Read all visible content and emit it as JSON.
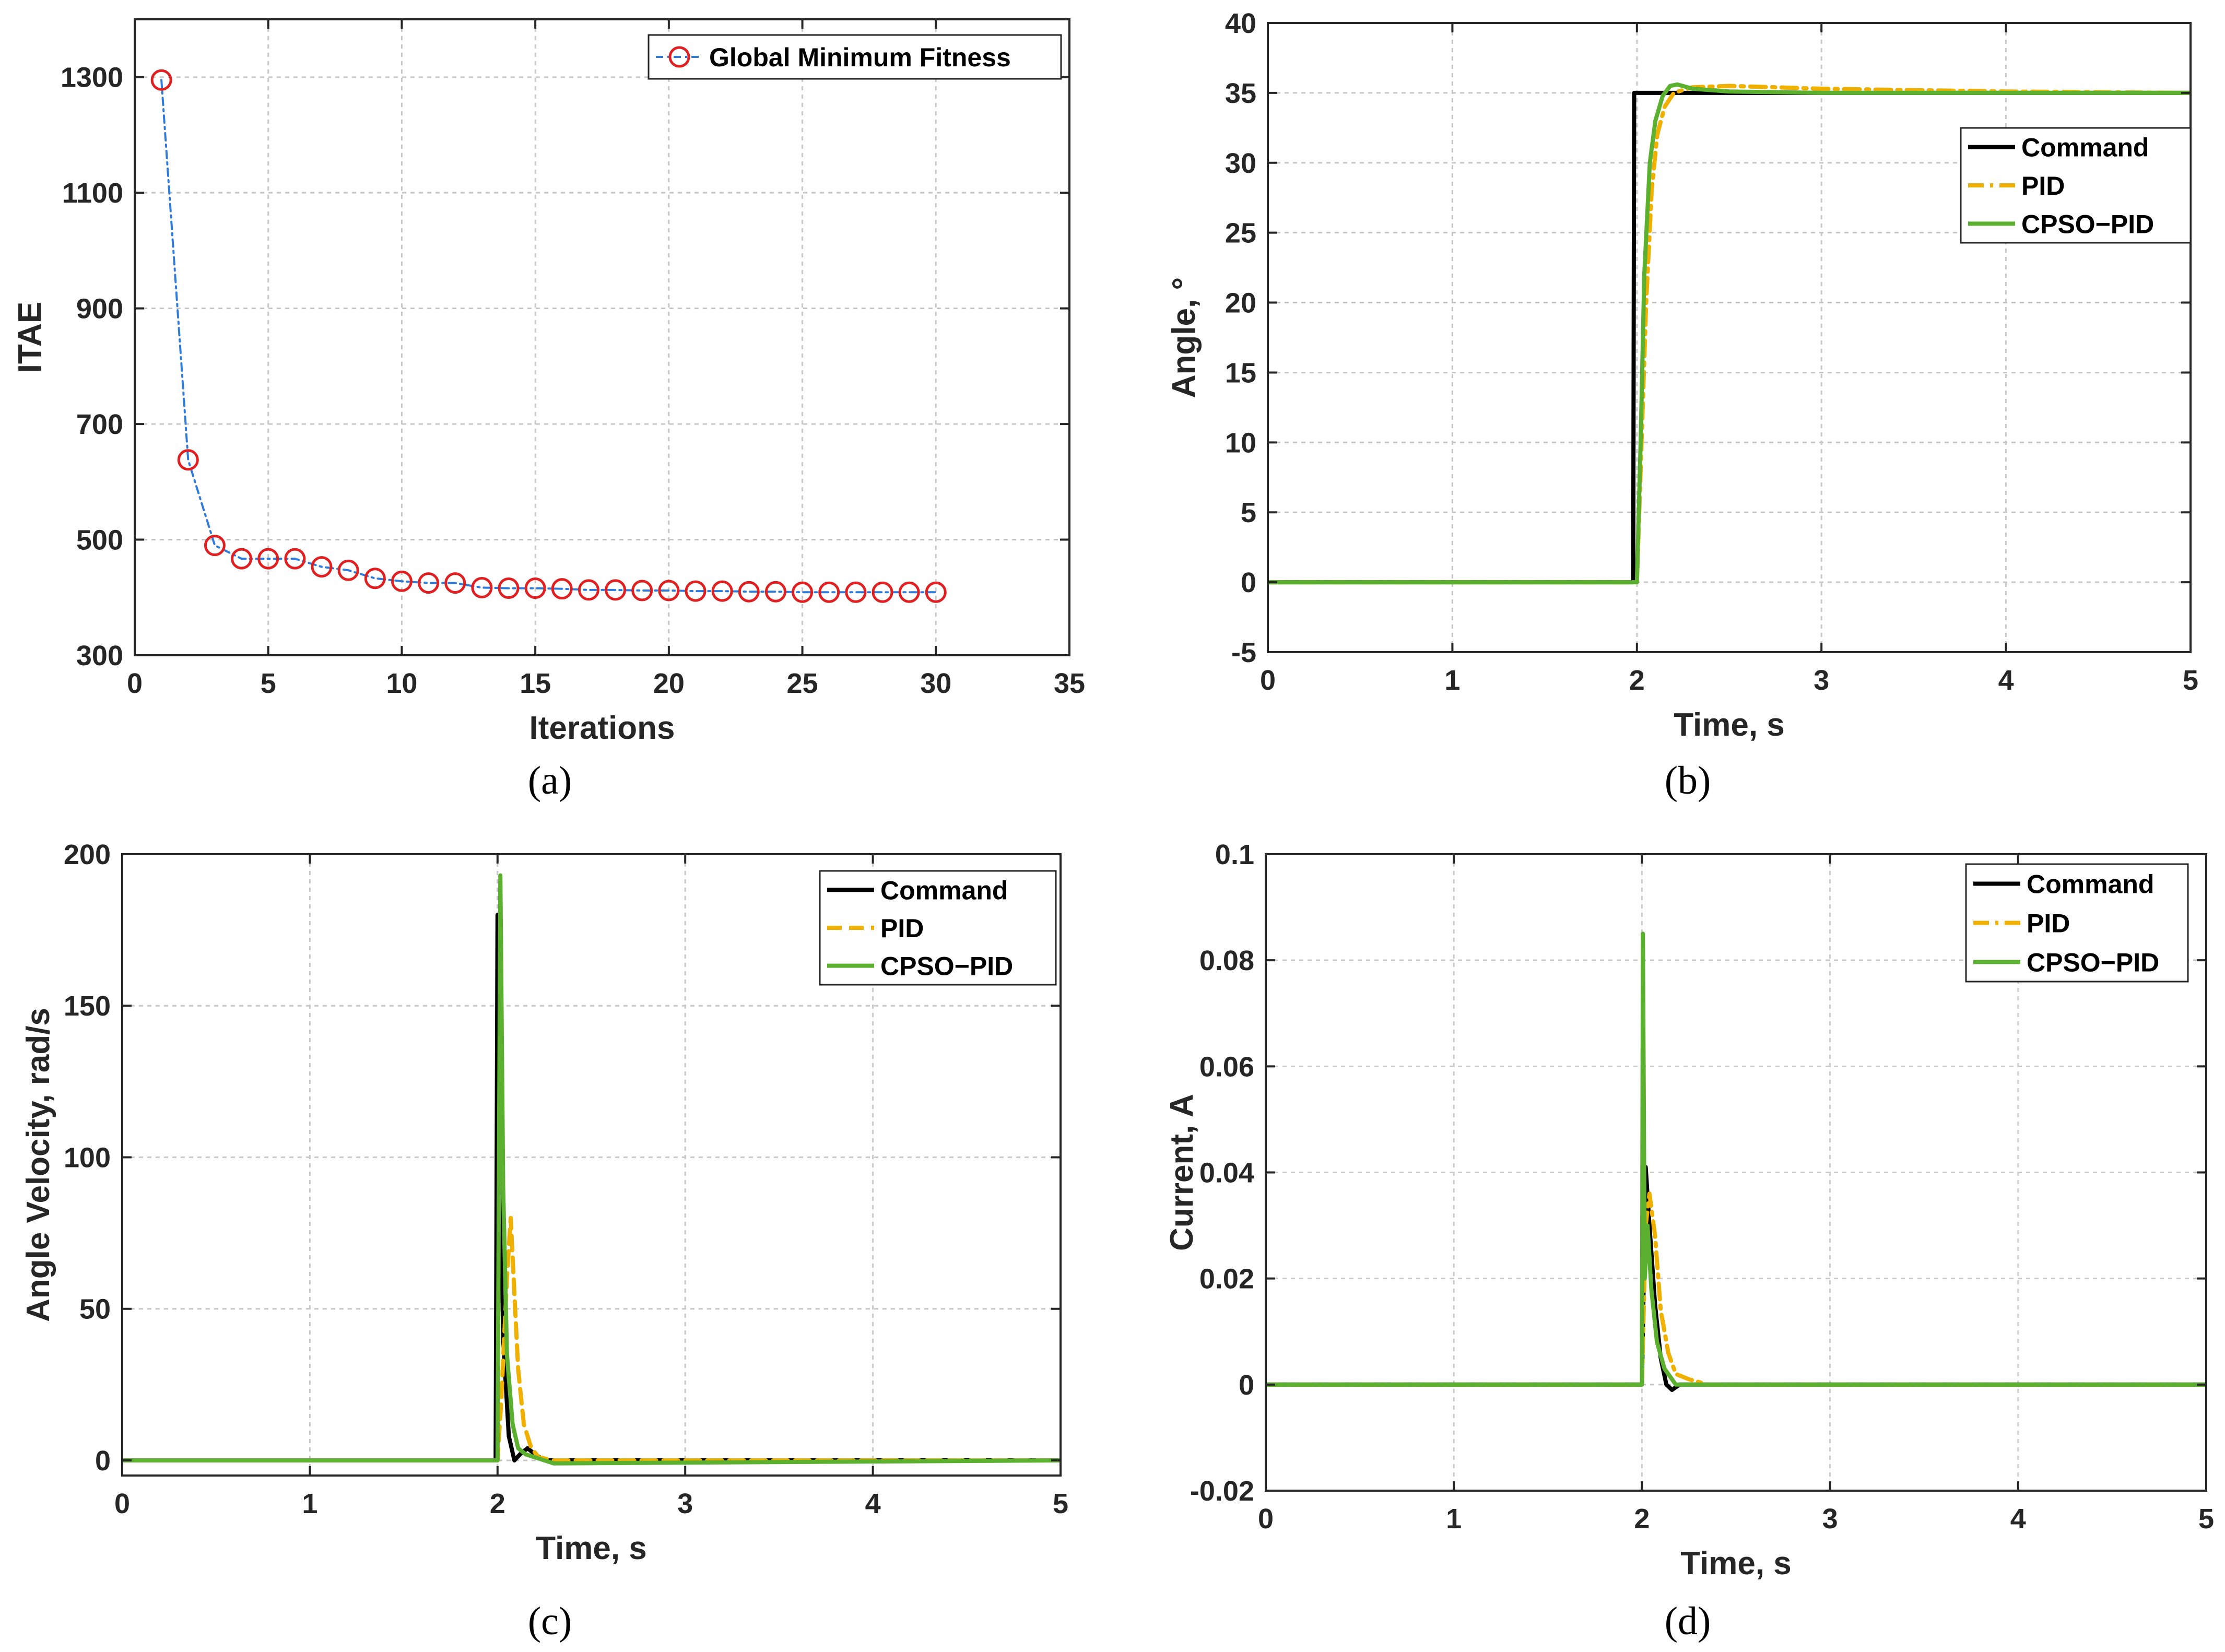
{
  "panel_labels": [
    "(a)",
    "(b)",
    "(c)",
    "(d)"
  ],
  "colors": {
    "fitness_line": "#2f7bd9",
    "fitness_marker": "#e02020",
    "command": "#000000",
    "pid": "#f0b000",
    "cpso_pid": "#5cb030",
    "grid": "#c8c8c8",
    "axis": "#262626"
  },
  "chart_data": [
    {
      "id": "a",
      "type": "line",
      "xlabel": "Iterations",
      "ylabel": "ITAE",
      "xlim": [
        0,
        35
      ],
      "ylim": [
        300,
        1400
      ],
      "xticks": [
        0,
        5,
        10,
        15,
        20,
        25,
        30,
        35
      ],
      "yticks": [
        300,
        500,
        700,
        900,
        1100,
        1300
      ],
      "grid": true,
      "legend_position": "top-right",
      "series": [
        {
          "name": "Global Minimum Fitness",
          "style": "dash-dot-circle",
          "x": [
            1,
            2,
            3,
            4,
            5,
            6,
            7,
            8,
            9,
            10,
            11,
            12,
            13,
            14,
            15,
            16,
            17,
            18,
            19,
            20,
            21,
            22,
            23,
            24,
            25,
            26,
            27,
            28,
            29,
            30
          ],
          "y": [
            1295,
            638,
            490,
            467,
            467,
            467,
            453,
            447,
            433,
            428,
            425,
            425,
            417,
            416,
            416,
            415,
            413,
            413,
            412,
            412,
            411,
            411,
            410,
            410,
            409,
            409,
            409,
            409,
            409,
            409
          ]
        }
      ]
    },
    {
      "id": "b",
      "type": "line",
      "xlabel": "Time, s",
      "ylabel": "Angle, °",
      "xlim": [
        0,
        5
      ],
      "ylim": [
        -5,
        40
      ],
      "xticks": [
        0,
        1,
        2,
        3,
        4,
        5
      ],
      "yticks": [
        -5,
        0,
        5,
        10,
        15,
        20,
        25,
        30,
        35,
        40
      ],
      "grid": true,
      "legend_position": "upper-right",
      "series": [
        {
          "name": "Command",
          "style": "solid",
          "x": [
            0,
            1.98,
            1.985,
            5
          ],
          "y": [
            0,
            0,
            35,
            35
          ]
        },
        {
          "name": "PID",
          "style": "dashdot",
          "x": [
            0,
            2.0,
            2.02,
            2.05,
            2.08,
            2.11,
            2.15,
            2.2,
            2.3,
            2.5,
            3.0,
            4.0,
            5.0
          ],
          "y": [
            0,
            0,
            8,
            20,
            28,
            32,
            34,
            35,
            35.4,
            35.5,
            35.3,
            35.1,
            35.0
          ]
        },
        {
          "name": "CPSO-PID",
          "style": "solid",
          "x": [
            0,
            2.0,
            2.02,
            2.04,
            2.07,
            2.1,
            2.14,
            2.18,
            2.22,
            2.3,
            2.5,
            3.0,
            4.0,
            5.0
          ],
          "y": [
            0,
            0,
            10,
            22,
            30,
            33,
            34.8,
            35.5,
            35.6,
            35.3,
            35.1,
            35.0,
            35.0,
            35.0
          ]
        }
      ]
    },
    {
      "id": "c",
      "type": "line",
      "xlabel": "Time, s",
      "ylabel": "Angle Velocity, rad/s",
      "xlim": [
        0,
        5
      ],
      "ylim": [
        -5,
        200
      ],
      "xticks": [
        0,
        1,
        2,
        3,
        4,
        5
      ],
      "yticks": [
        0,
        50,
        100,
        150,
        200
      ],
      "grid": true,
      "legend_position": "upper-right",
      "series": [
        {
          "name": "Command",
          "style": "solid",
          "x": [
            0,
            1.99,
            2.0,
            2.01,
            2.03,
            2.06,
            2.09,
            2.12,
            2.16,
            2.2,
            2.25,
            2.3,
            5.0
          ],
          "y": [
            0,
            0,
            180,
            120,
            40,
            8,
            0,
            2,
            4,
            2,
            0,
            0,
            0
          ]
        },
        {
          "name": "PID",
          "style": "dashed",
          "x": [
            0,
            2.0,
            2.02,
            2.05,
            2.07,
            2.09,
            2.11,
            2.14,
            2.18,
            2.22,
            2.3,
            5.0
          ],
          "y": [
            0,
            0,
            20,
            60,
            80,
            55,
            30,
            12,
            4,
            1,
            0,
            0
          ]
        },
        {
          "name": "CPSO-PID",
          "style": "solid",
          "x": [
            0,
            2.0,
            2.015,
            2.03,
            2.05,
            2.08,
            2.11,
            2.15,
            2.2,
            2.25,
            2.3,
            5.0
          ],
          "y": [
            0,
            0,
            193,
            90,
            35,
            12,
            4,
            2,
            1,
            0,
            -1,
            0
          ]
        }
      ]
    },
    {
      "id": "d",
      "type": "line",
      "xlabel": "Time, s",
      "ylabel": "Current, A",
      "xlim": [
        0,
        5
      ],
      "ylim": [
        -0.02,
        0.1
      ],
      "xticks": [
        0,
        1,
        2,
        3,
        4,
        5
      ],
      "yticks": [
        -0.02,
        0,
        0.02,
        0.04,
        0.06,
        0.08,
        0.1
      ],
      "grid": true,
      "legend_position": "upper-right",
      "series": [
        {
          "name": "Command",
          "style": "solid",
          "x": [
            0,
            2.0,
            2.02,
            2.04,
            2.07,
            2.1,
            2.13,
            2.16,
            2.2,
            2.3,
            5.0
          ],
          "y": [
            0,
            0,
            0.041,
            0.03,
            0.015,
            0.005,
            0.0,
            -0.001,
            0.0,
            0.0,
            0.0
          ]
        },
        {
          "name": "PID",
          "style": "dashdot",
          "x": [
            0,
            2.0,
            2.02,
            2.04,
            2.07,
            2.1,
            2.14,
            2.18,
            2.25,
            2.35,
            5.0
          ],
          "y": [
            0,
            0,
            0.03,
            0.036,
            0.028,
            0.014,
            0.006,
            0.002,
            0.001,
            0.0,
            0.0
          ]
        },
        {
          "name": "CPSO-PID",
          "style": "solid",
          "x": [
            0,
            2.0,
            2.005,
            2.015,
            2.03,
            2.05,
            2.08,
            2.12,
            2.18,
            2.25,
            5.0
          ],
          "y": [
            0,
            0,
            0.085,
            0.02,
            0.03,
            0.018,
            0.008,
            0.003,
            0.0,
            0.0,
            0.0
          ]
        }
      ]
    }
  ]
}
